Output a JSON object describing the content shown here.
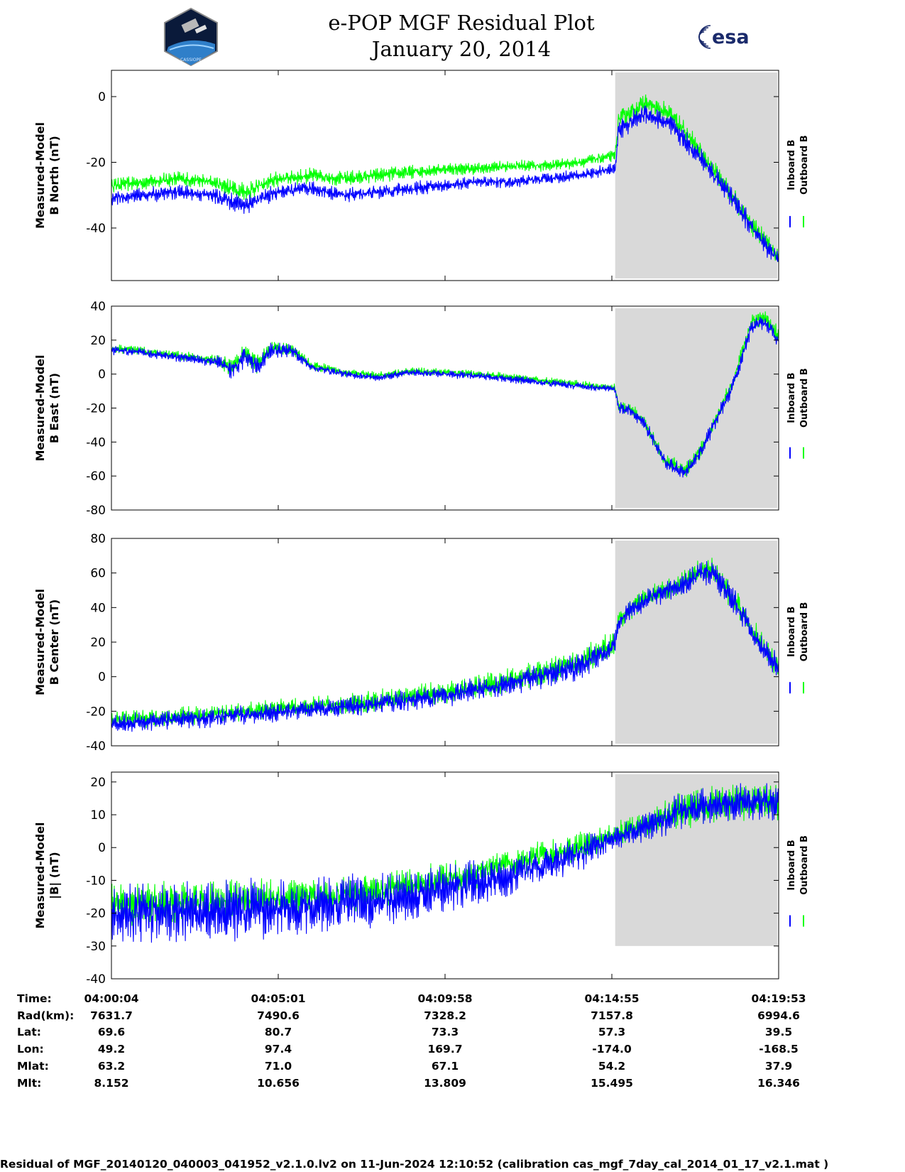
{
  "header": {
    "title": "e-POP MGF Residual Plot",
    "date": "January 20, 2014",
    "logo_left_text": "CASSIOPE",
    "logo_right_text": "esa"
  },
  "colors": {
    "inboard": "#0000ff",
    "outboard": "#00ff00",
    "shade": "#d9d9d9"
  },
  "chart_data": [
    {
      "type": "line",
      "ylabel_line1": "Measured-Model",
      "ylabel_line2": "B North (nT)",
      "ylim": [
        -56,
        8
      ],
      "yticks": [
        0,
        -20,
        -40
      ],
      "shade_start_frac": 0.755,
      "series": [
        {
          "name": "Inboard B",
          "color": "#0000ff",
          "x": [
            0,
            0.05,
            0.1,
            0.15,
            0.2,
            0.25,
            0.3,
            0.35,
            0.4,
            0.45,
            0.5,
            0.55,
            0.6,
            0.65,
            0.7,
            0.755,
            0.76,
            0.8,
            0.84,
            0.88,
            0.92,
            0.96,
            1.0
          ],
          "y": [
            -31,
            -30,
            -29,
            -30,
            -33,
            -29,
            -28,
            -30,
            -29,
            -28,
            -27,
            -26,
            -26,
            -25,
            -24,
            -22,
            -10,
            -5,
            -9,
            -18,
            -28,
            -40,
            -50
          ],
          "noise": [
            2.5,
            2.5,
            2.5,
            2.5,
            3.5,
            2.5,
            2.5,
            2.5,
            2.5,
            2.5,
            2,
            2,
            2,
            2,
            2,
            2,
            3.5,
            3.5,
            3.5,
            3.5,
            3.5,
            3.5,
            3.5
          ]
        },
        {
          "name": "Outboard B",
          "color": "#00ff00",
          "x": [
            0,
            0.05,
            0.1,
            0.15,
            0.2,
            0.25,
            0.3,
            0.35,
            0.4,
            0.45,
            0.5,
            0.55,
            0.6,
            0.65,
            0.7,
            0.755,
            0.76,
            0.8,
            0.84,
            0.88,
            0.92,
            0.96,
            1.0
          ],
          "y": [
            -27,
            -26,
            -25,
            -26,
            -29,
            -25,
            -24,
            -25,
            -24,
            -23,
            -22,
            -22,
            -21,
            -21,
            -20,
            -18,
            -7,
            -2,
            -6,
            -16,
            -27,
            -39,
            -49
          ],
          "noise": [
            2.5,
            2.5,
            2.5,
            2.5,
            3.5,
            2.5,
            2.5,
            2.5,
            2.5,
            2.5,
            2,
            2,
            2,
            2,
            2,
            2,
            3.5,
            3.5,
            3.5,
            3.5,
            3.5,
            3.5,
            3.5
          ]
        }
      ],
      "legend": [
        "Inboard B",
        "Outboard B"
      ]
    },
    {
      "type": "line",
      "ylabel_line1": "Measured-Model",
      "ylabel_line2": "B East (nT)",
      "ylim": [
        -80,
        40
      ],
      "yticks": [
        40,
        20,
        0,
        -20,
        -40,
        -60,
        -80
      ],
      "shade_start_frac": 0.755,
      "series": [
        {
          "name": "Inboard B",
          "color": "#0000ff",
          "x": [
            0,
            0.04,
            0.08,
            0.12,
            0.16,
            0.18,
            0.2,
            0.22,
            0.24,
            0.27,
            0.3,
            0.35,
            0.4,
            0.45,
            0.5,
            0.55,
            0.6,
            0.65,
            0.7,
            0.755,
            0.76,
            0.78,
            0.8,
            0.83,
            0.86,
            0.88,
            0.9,
            0.93,
            0.96,
            0.98,
            1.0
          ],
          "y": [
            14,
            13,
            11,
            9,
            7,
            3,
            10,
            5,
            14,
            14,
            4,
            0,
            -2,
            1,
            0,
            -1,
            -3,
            -5,
            -7,
            -9,
            -20,
            -22,
            -30,
            -52,
            -58,
            -48,
            -32,
            -8,
            28,
            30,
            20
          ],
          "noise": [
            3,
            3,
            3,
            3,
            4,
            7,
            7,
            7,
            5,
            4,
            3,
            2.5,
            2.5,
            2.5,
            2.5,
            2.5,
            2.5,
            2.5,
            2.5,
            2.5,
            4,
            4,
            4,
            5,
            5,
            5,
            5,
            5,
            5,
            5,
            5
          ]
        },
        {
          "name": "Outboard B",
          "color": "#00ff00",
          "x": [
            0,
            0.04,
            0.08,
            0.12,
            0.16,
            0.18,
            0.2,
            0.22,
            0.24,
            0.27,
            0.3,
            0.35,
            0.4,
            0.45,
            0.5,
            0.55,
            0.6,
            0.65,
            0.7,
            0.755,
            0.76,
            0.78,
            0.8,
            0.83,
            0.86,
            0.88,
            0.9,
            0.93,
            0.96,
            0.98,
            1.0
          ],
          "y": [
            15,
            14,
            12,
            10,
            8,
            4,
            11,
            6,
            15,
            15,
            5,
            1,
            -1,
            2,
            1,
            0,
            -2,
            -4,
            -6,
            -8,
            -19,
            -21,
            -29,
            -51,
            -57,
            -47,
            -31,
            -6,
            31,
            33,
            23
          ],
          "noise": [
            3,
            3,
            3,
            3,
            4,
            7,
            7,
            7,
            5,
            4,
            3,
            2.5,
            2.5,
            2.5,
            2.5,
            2.5,
            2.5,
            2.5,
            2.5,
            2.5,
            4,
            4,
            4,
            5,
            5,
            5,
            5,
            5,
            5,
            5,
            5
          ]
        }
      ],
      "legend": [
        "Inboard B",
        "Outboard B"
      ]
    },
    {
      "type": "line",
      "ylabel_line1": "Measured-Model",
      "ylabel_line2": "B Center (nT)",
      "ylim": [
        -40,
        80
      ],
      "yticks": [
        80,
        60,
        40,
        20,
        0,
        -20,
        -40
      ],
      "shade_start_frac": 0.755,
      "series": [
        {
          "name": "Inboard B",
          "color": "#0000ff",
          "x": [
            0,
            0.1,
            0.2,
            0.3,
            0.4,
            0.5,
            0.6,
            0.7,
            0.755,
            0.76,
            0.8,
            0.85,
            0.88,
            0.9,
            0.94,
            0.97,
            1.0
          ],
          "y": [
            -27,
            -25,
            -22,
            -19,
            -16,
            -11,
            -4,
            6,
            18,
            32,
            45,
            52,
            60,
            60,
            40,
            20,
            5
          ],
          "noise": [
            6,
            6,
            6,
            6,
            7,
            7,
            8,
            9,
            8,
            6,
            7,
            7,
            8,
            8,
            8,
            8,
            8
          ]
        },
        {
          "name": "Outboard B",
          "color": "#00ff00",
          "x": [
            0,
            0.1,
            0.2,
            0.3,
            0.4,
            0.5,
            0.6,
            0.7,
            0.755,
            0.76,
            0.8,
            0.85,
            0.88,
            0.9,
            0.94,
            0.97,
            1.0
          ],
          "y": [
            -25,
            -23,
            -20,
            -17,
            -14,
            -9,
            -2,
            8,
            20,
            33,
            46,
            53,
            61,
            61,
            41,
            21,
            6
          ],
          "noise": [
            6,
            6,
            6,
            6,
            7,
            7,
            8,
            9,
            8,
            6,
            7,
            7,
            8,
            8,
            8,
            8,
            8
          ]
        }
      ],
      "legend": [
        "Inboard B",
        "Outboard B"
      ]
    },
    {
      "type": "line",
      "ylabel_line1": "Measured-Model",
      "ylabel_line2": "|B| (nT)",
      "ylim": [
        -40,
        23
      ],
      "yticks": [
        20,
        10,
        0,
        -10,
        -20,
        -30,
        -40
      ],
      "shade_start_frac": 0.755,
      "shade_ymin": -30,
      "series": [
        {
          "name": "Inboard B",
          "color": "#0000ff",
          "x": [
            0,
            0.1,
            0.2,
            0.3,
            0.4,
            0.5,
            0.6,
            0.7,
            0.755,
            0.8,
            0.85,
            0.9,
            0.95,
            1.0
          ],
          "y": [
            -20,
            -20,
            -19,
            -18,
            -16,
            -13,
            -8,
            -2,
            3,
            6,
            11,
            13,
            14,
            14
          ],
          "noise": [
            10,
            10,
            10,
            9,
            9,
            8,
            7,
            6,
            4,
            5,
            6,
            6,
            6,
            6
          ]
        },
        {
          "name": "Outboard B",
          "color": "#00ff00",
          "x": [
            0,
            0.1,
            0.2,
            0.3,
            0.4,
            0.5,
            0.6,
            0.7,
            0.755,
            0.8,
            0.85,
            0.9,
            0.95,
            1.0
          ],
          "y": [
            -17,
            -17,
            -16,
            -15,
            -13,
            -10,
            -5,
            0,
            4,
            7,
            11,
            13,
            14,
            14
          ],
          "noise": [
            7,
            7,
            7,
            6,
            6,
            6,
            5,
            5,
            4,
            5,
            6,
            6,
            6,
            6
          ]
        }
      ],
      "legend": [
        "Inboard B",
        "Outboard B"
      ]
    }
  ],
  "table": {
    "labels": [
      "Time:",
      "Rad(km):",
      "Lat:",
      "Lon:",
      "Mlat:",
      "Mlt:"
    ],
    "columns": [
      [
        "04:00:04",
        "7631.7",
        "69.6",
        "49.2",
        "63.2",
        "8.152"
      ],
      [
        "04:05:01",
        "7490.6",
        "80.7",
        "97.4",
        "71.0",
        "10.656"
      ],
      [
        "04:09:58",
        "7328.2",
        "73.3",
        "169.7",
        "67.1",
        "13.809"
      ],
      [
        "04:14:55",
        "7157.8",
        "57.3",
        "-174.0",
        "54.2",
        "15.495"
      ],
      [
        "04:19:53",
        "6994.6",
        "39.5",
        "-168.5",
        "37.9",
        "16.346"
      ]
    ]
  },
  "footer": "Residual of MGF_20140120_040003_041952_v2.1.0.lv2 on 11-Jun-2024 12:10:52 (calibration cas_mgf_7day_cal_2014_01_17_v2.1.mat )"
}
